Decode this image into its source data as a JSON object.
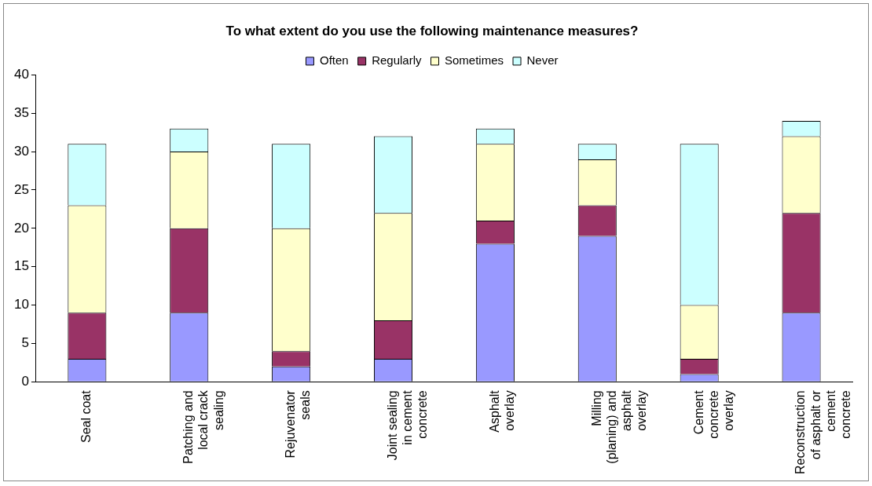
{
  "chart_data": {
    "type": "bar",
    "title": "To what extent do you use the following maintenance measures?",
    "categories": [
      "Seal coat",
      "Patching and local crack sealing",
      "Rejuvenator seals",
      "Joint sealing in cement concrete",
      "Asphalt overlay",
      "Milling (planing) and asphalt overlay",
      "Cement concrete overlay",
      "Reconstruction of asphalt or cement concrete"
    ],
    "series": [
      {
        "name": "Often",
        "color": "#9999ff",
        "values": [
          3,
          9,
          2,
          3,
          18,
          19,
          1,
          9
        ]
      },
      {
        "name": "Regularly",
        "color": "#993366",
        "values": [
          6,
          11,
          2,
          5,
          3,
          4,
          2,
          13
        ]
      },
      {
        "name": "Sometimes",
        "color": "#ffffcc",
        "values": [
          14,
          10,
          16,
          14,
          10,
          6,
          7,
          10
        ]
      },
      {
        "name": "Never",
        "color": "#ccffff",
        "values": [
          8,
          3,
          11,
          10,
          2,
          2,
          21,
          2
        ]
      }
    ],
    "stacked": true,
    "ylim": [
      0,
      40
    ],
    "yticks": [
      0,
      5,
      10,
      15,
      20,
      25,
      30,
      35,
      40
    ],
    "grid": false,
    "legend": "top"
  }
}
